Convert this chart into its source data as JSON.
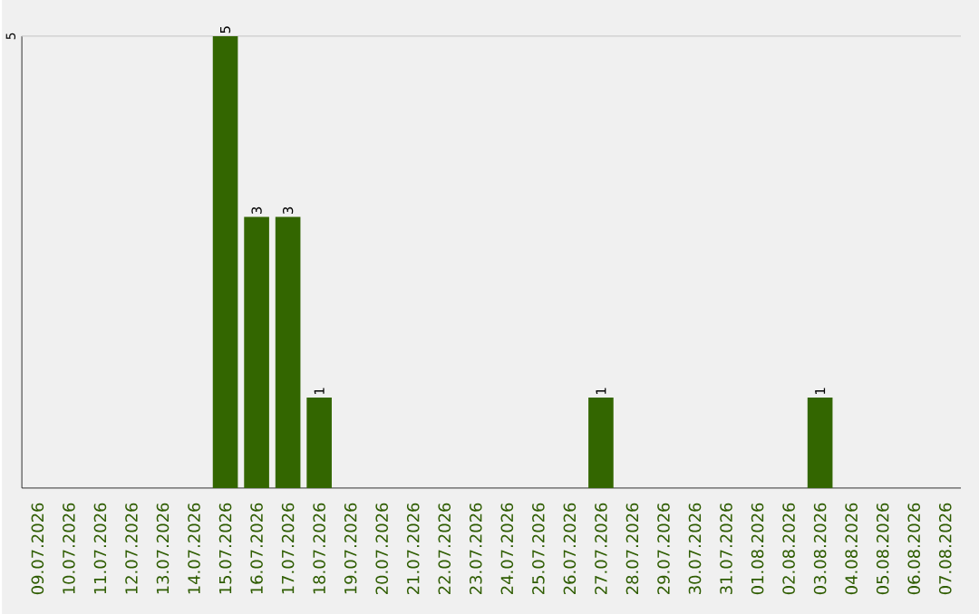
{
  "chart_data": {
    "type": "bar",
    "categories": [
      "09.07.2026",
      "10.07.2026",
      "11.07.2026",
      "12.07.2026",
      "13.07.2026",
      "14.07.2026",
      "15.07.2026",
      "16.07.2026",
      "17.07.2026",
      "18.07.2026",
      "19.07.2026",
      "20.07.2026",
      "21.07.2026",
      "22.07.2026",
      "23.07.2026",
      "24.07.2026",
      "25.07.2026",
      "26.07.2026",
      "27.07.2026",
      "28.07.2026",
      "29.07.2026",
      "30.07.2026",
      "31.07.2026",
      "01.08.2026",
      "02.08.2026",
      "03.08.2026",
      "04.08.2026",
      "05.08.2026",
      "06.08.2026",
      "07.08.2026"
    ],
    "values": [
      0,
      0,
      0,
      0,
      0,
      0,
      5,
      3,
      3,
      1,
      0,
      0,
      0,
      0,
      0,
      0,
      0,
      0,
      1,
      0,
      0,
      0,
      0,
      0,
      0,
      1,
      0,
      0,
      0,
      0
    ],
    "value_labels": [
      null,
      null,
      null,
      null,
      null,
      null,
      "5",
      "3",
      "3",
      "1",
      null,
      null,
      null,
      null,
      null,
      null,
      null,
      null,
      "1",
      null,
      null,
      null,
      null,
      null,
      null,
      "1",
      null,
      null,
      null,
      null
    ],
    "color": "#336600",
    "ylim": [
      0,
      5
    ],
    "yticks": [
      5
    ],
    "ref_lines": [
      {
        "axis": "y",
        "value": 5,
        "color": "#cccccc"
      }
    ]
  }
}
